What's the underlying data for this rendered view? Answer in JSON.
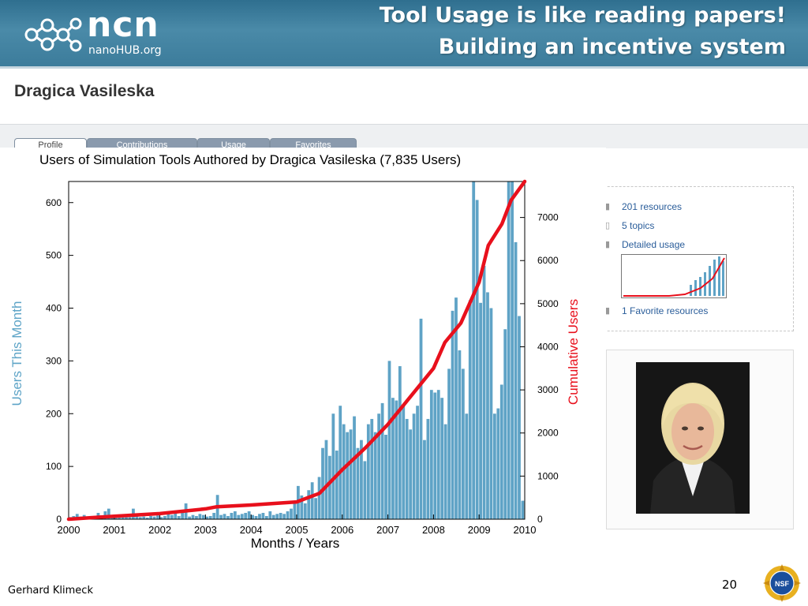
{
  "header": {
    "logo_main": "ncn",
    "logo_sub": "nanoHUB.org",
    "title_line1": "Tool Usage is like reading papers!",
    "title_line2": "Building an incentive system"
  },
  "profile": {
    "name": "Dragica Vasileska",
    "tabs": [
      "Profile",
      "Contributions",
      "Usage",
      "Favorites"
    ],
    "panel_items": [
      "201 resources",
      "5 topics",
      "Detailed usage",
      "1 Favorite resources"
    ]
  },
  "footer": {
    "author": "Gerhard Klimeck",
    "page_number": "20"
  },
  "chart_data": {
    "type": "bar",
    "title": "Users of Simulation Tools Authored by Dragica Vasileska (7,835 Users)",
    "xlabel": "Months / Years",
    "ylabel": "Users This Month",
    "y2label": "Cumulative Users",
    "xlim": [
      2000,
      2010
    ],
    "ylim": [
      0,
      640
    ],
    "y2lim": [
      0,
      7835
    ],
    "x_ticks": [
      "2000",
      "2001",
      "2002",
      "2003",
      "2004",
      "2005",
      "2006",
      "2007",
      "2008",
      "2009",
      "2010"
    ],
    "y_ticks": [
      0,
      100,
      200,
      300,
      400,
      500,
      600
    ],
    "y2_ticks": [
      0,
      1000,
      2000,
      3000,
      4000,
      5000,
      6000,
      7000
    ],
    "bar_color": "#5fa3c6",
    "line_color": "#e8101c",
    "monthly_users": [
      4,
      6,
      10,
      5,
      8,
      4,
      6,
      3,
      12,
      5,
      15,
      20,
      4,
      6,
      3,
      5,
      8,
      4,
      20,
      6,
      4,
      5,
      3,
      6,
      5,
      7,
      4,
      6,
      10,
      8,
      12,
      6,
      15,
      30,
      5,
      8,
      6,
      10,
      8,
      5,
      6,
      12,
      46,
      8,
      10,
      6,
      12,
      15,
      8,
      10,
      12,
      15,
      8,
      6,
      10,
      12,
      6,
      15,
      8,
      10,
      12,
      10,
      15,
      20,
      30,
      63,
      45,
      30,
      55,
      70,
      40,
      80,
      135,
      150,
      120,
      200,
      130,
      215,
      180,
      165,
      170,
      195,
      135,
      150,
      110,
      180,
      190,
      165,
      200,
      220,
      160,
      300,
      230,
      225,
      290,
      215,
      190,
      170,
      200,
      215,
      380,
      150,
      190,
      245,
      240,
      245,
      230,
      180,
      285,
      395,
      420,
      320,
      285,
      200,
      415,
      640,
      605,
      410,
      480,
      430,
      400,
      200,
      210,
      255,
      360,
      640,
      665,
      525,
      385,
      35
    ],
    "cumulative_users": [
      {
        "x": 2000.0,
        "y": 0
      },
      {
        "x": 2001.0,
        "y": 70
      },
      {
        "x": 2002.0,
        "y": 130
      },
      {
        "x": 2003.0,
        "y": 240
      },
      {
        "x": 2003.25,
        "y": 290
      },
      {
        "x": 2004.0,
        "y": 330
      },
      {
        "x": 2005.0,
        "y": 400
      },
      {
        "x": 2005.5,
        "y": 600
      },
      {
        "x": 2006.0,
        "y": 1150
      },
      {
        "x": 2006.5,
        "y": 1650
      },
      {
        "x": 2007.0,
        "y": 2200
      },
      {
        "x": 2007.5,
        "y": 2850
      },
      {
        "x": 2008.0,
        "y": 3500
      },
      {
        "x": 2008.25,
        "y": 4100
      },
      {
        "x": 2008.6,
        "y": 4550
      },
      {
        "x": 2009.0,
        "y": 5500
      },
      {
        "x": 2009.2,
        "y": 6350
      },
      {
        "x": 2009.5,
        "y": 6850
      },
      {
        "x": 2009.7,
        "y": 7400
      },
      {
        "x": 2010.0,
        "y": 7835
      }
    ]
  }
}
